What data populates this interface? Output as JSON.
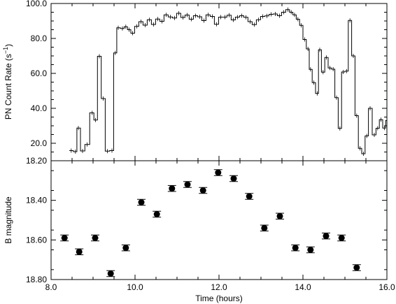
{
  "chart_data": [
    {
      "type": "line",
      "ylabel": "PN Count Rate (s",
      "ylabel_sup": "−1",
      "ylabel_close": ")",
      "xlim": [
        8.0,
        16.0
      ],
      "ylim": [
        10.0,
        100.0
      ],
      "yticks": [
        "100.0",
        "80.0",
        "60.0",
        "40.0",
        "20.0"
      ],
      "ytick_values": [
        100,
        80,
        60,
        40,
        20
      ],
      "x": [
        8.48,
        8.58,
        8.65,
        8.75,
        8.86,
        8.98,
        9.06,
        9.15,
        9.24,
        9.34,
        9.45,
        9.53,
        9.6,
        9.7,
        9.78,
        9.86,
        9.94,
        10.04,
        10.14,
        10.24,
        10.34,
        10.44,
        10.54,
        10.64,
        10.74,
        10.84,
        10.94,
        11.04,
        11.14,
        11.24,
        11.34,
        11.44,
        11.54,
        11.64,
        11.74,
        11.84,
        11.94,
        12.04,
        12.14,
        12.24,
        12.34,
        12.44,
        12.54,
        12.64,
        12.74,
        12.84,
        12.94,
        13.04,
        13.14,
        13.24,
        13.34,
        13.44,
        13.54,
        13.64,
        13.72,
        13.8,
        13.88,
        13.96,
        14.04,
        14.12,
        14.18,
        14.26,
        14.34,
        14.4,
        14.48,
        14.56,
        14.64,
        14.72,
        14.8,
        14.88,
        14.96,
        15.04,
        15.12,
        15.2,
        15.28,
        15.36,
        15.44,
        15.52,
        15.6,
        15.7,
        15.78,
        15.86,
        15.94,
        16.0
      ],
      "y": [
        15.8,
        15.2,
        28.7,
        15.6,
        19.3,
        37.4,
        33.3,
        69.8,
        45.6,
        15.5,
        15.8,
        71.7,
        86.1,
        85.7,
        86.7,
        85.0,
        83.0,
        86.9,
        89.6,
        87.6,
        90.7,
        88.0,
        91.1,
        89.8,
        93.5,
        92.3,
        91.7,
        94.4,
        92.0,
        93.4,
        91.0,
        93.0,
        92.4,
        90.2,
        93.5,
        92.6,
        88.1,
        92.2,
        92.2,
        93.3,
        90.6,
        92.2,
        93.0,
        92.1,
        89.6,
        87.9,
        90.7,
        92.6,
        92.9,
        93.8,
        94.0,
        93.0,
        95.0,
        96.5,
        95.0,
        93.5,
        91.0,
        87.5,
        79.4,
        74.0,
        62.3,
        54.7,
        48.5,
        73.5,
        60.7,
        69.1,
        63.1,
        62.4,
        46.1,
        28.5,
        60.8,
        61.3,
        90.3,
        70.0,
        35.8,
        17.1,
        14.0,
        24.2,
        40.0,
        24.8,
        28.6,
        33.5,
        28.7,
        33.0
      ],
      "yerr": 0.8
    },
    {
      "type": "scatter",
      "xlabel": "Time (hours)",
      "ylabel": "B magnitude",
      "xlim": [
        8.0,
        16.0
      ],
      "ylim": [
        18.8,
        18.2
      ],
      "xticks": [
        "8.0",
        "10.0",
        "12.0",
        "14.0",
        "16.0"
      ],
      "xtick_values": [
        8,
        10,
        12,
        14,
        16
      ],
      "yticks": [
        "18.20",
        "18.40",
        "18.60",
        "18.80"
      ],
      "ytick_values": [
        18.2,
        18.4,
        18.6,
        18.8
      ],
      "x": [
        8.32,
        8.67,
        9.05,
        9.42,
        9.78,
        10.15,
        10.52,
        10.88,
        11.25,
        11.62,
        11.98,
        12.35,
        12.72,
        13.08,
        13.45,
        13.82,
        14.18,
        14.55,
        14.92,
        15.28
      ],
      "y": [
        18.59,
        18.66,
        18.59,
        18.77,
        18.64,
        18.41,
        18.47,
        18.34,
        18.32,
        18.35,
        18.26,
        18.29,
        18.38,
        18.54,
        18.48,
        18.64,
        18.65,
        18.58,
        18.59,
        18.74
      ],
      "yerr": [
        0.015,
        0.015,
        0.015,
        0.015,
        0.015,
        0.015,
        0.015,
        0.015,
        0.015,
        0.015,
        0.015,
        0.015,
        0.015,
        0.015,
        0.015,
        0.015,
        0.015,
        0.015,
        0.015,
        0.015
      ]
    }
  ]
}
